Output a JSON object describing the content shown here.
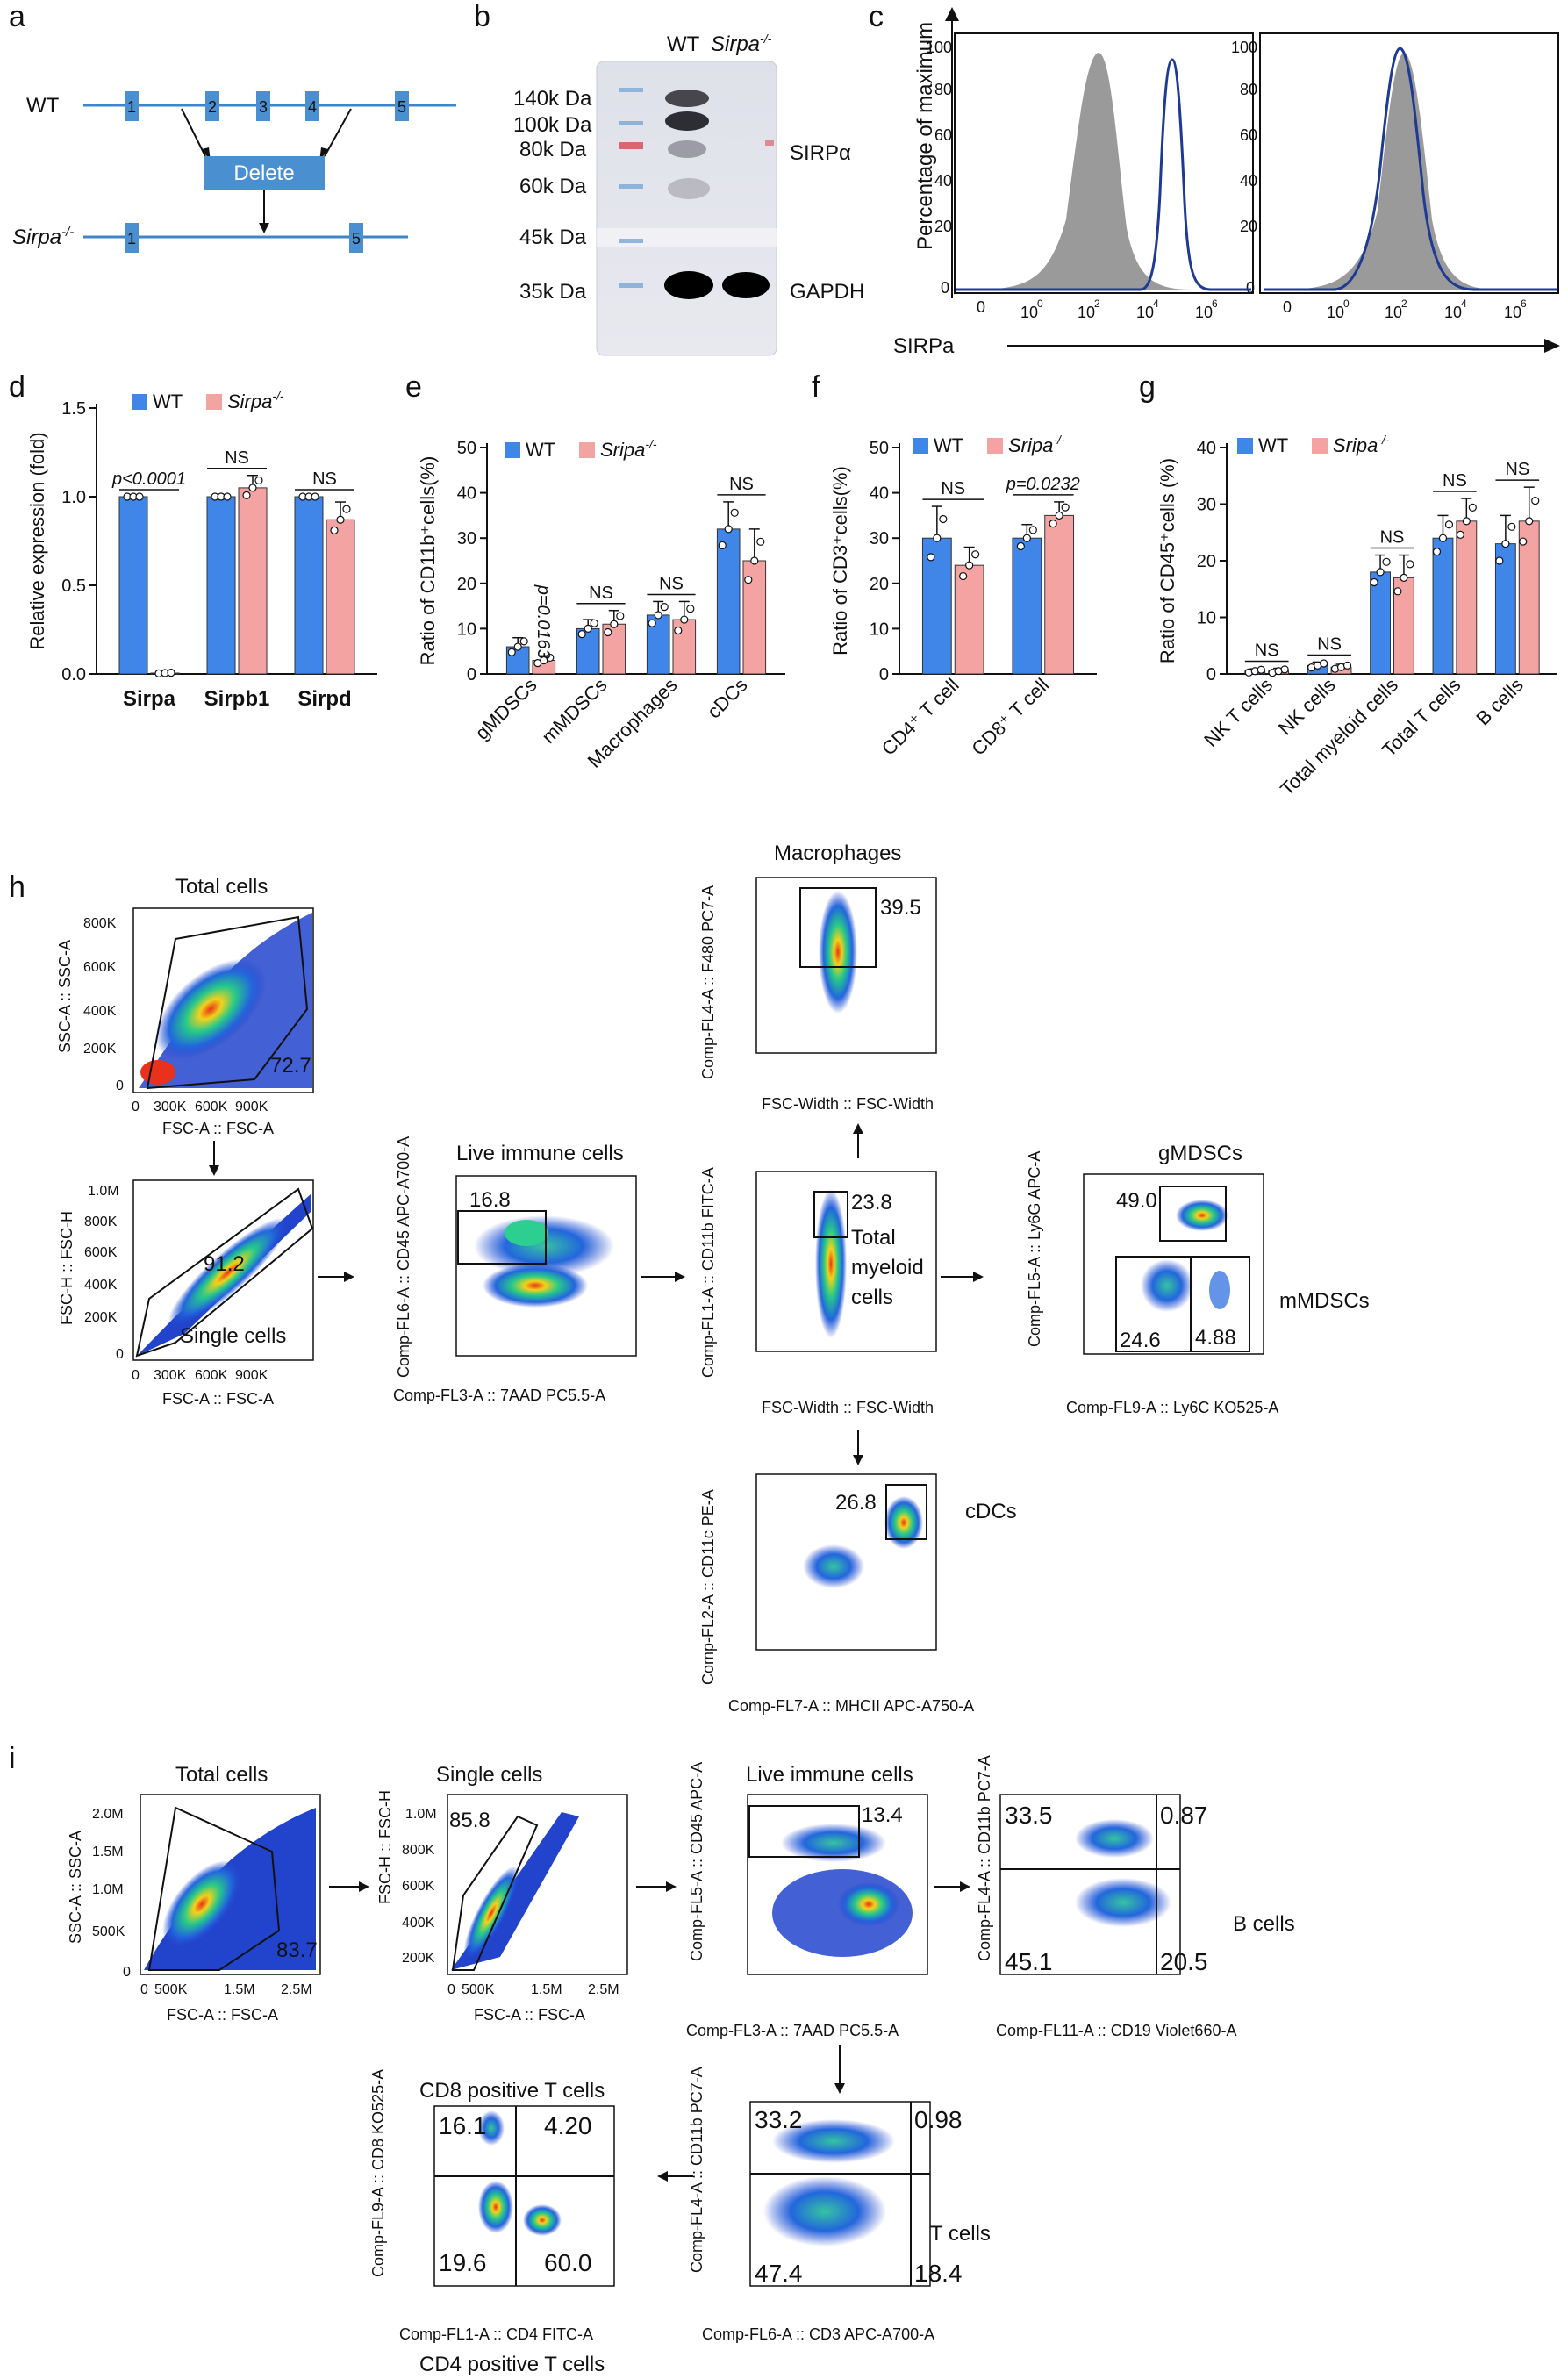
{
  "panel_labels": [
    "a",
    "b",
    "c",
    "d",
    "e",
    "f",
    "g",
    "h",
    "i"
  ],
  "a": {
    "wt_label": "WT",
    "ko_label": "Sirpa",
    "ko_sup": "-/-",
    "wt_exons": [
      "1",
      "2",
      "3",
      "4",
      "5"
    ],
    "ko_exons": [
      "1",
      "5"
    ],
    "delete_label": "Delete"
  },
  "b": {
    "lane_wt": "WT",
    "lane_ko": "Sirpa",
    "lane_ko_sup": "-/-",
    "markers": [
      "140k Da",
      "100k Da",
      "80k Da",
      "60k Da",
      "45k Da",
      "35k Da"
    ],
    "band_labels": [
      "SIRPα",
      "GAPDH"
    ]
  },
  "c": {
    "ylabel": "Percentage of maximum",
    "xlabel": "SIRPa",
    "yticks": [
      "0",
      "20",
      "40",
      "60",
      "80",
      "100"
    ],
    "xticks": [
      "0",
      "10",
      "10",
      "10",
      "10"
    ],
    "xtick_exps": [
      "",
      "0",
      "2",
      "4",
      "6"
    ],
    "colors": {
      "fill": "#9a9a9a",
      "line": "#1f3a93"
    }
  },
  "chart_data": [
    {
      "panel": "d",
      "type": "bar",
      "ylabel": "Relative expression (fold)",
      "categories": [
        "Sirpa",
        "Sirpb1",
        "Sirpd"
      ],
      "series": [
        {
          "name": "WT",
          "values": [
            1.0,
            1.0,
            1.0
          ],
          "color": "#3f86e8"
        },
        {
          "name": "Sirpa-/-",
          "values": [
            0.005,
            1.05,
            0.87
          ],
          "color": "#f4a3a3"
        }
      ],
      "errors": [
        [
          0.0,
          0.0,
          0.0
        ],
        [
          0.003,
          0.07,
          0.1
        ]
      ],
      "ylim": [
        0,
        1.5
      ],
      "yticks": [
        "0.0",
        "0.5",
        "1.0",
        "1.5"
      ],
      "annotations": [
        "p<0.0001",
        "NS",
        "NS"
      ],
      "legend": [
        "WT",
        "Sirpa-/-"
      ],
      "legend_ko_text": "Sirpa",
      "legend_ko_sup": "-/-"
    },
    {
      "panel": "e",
      "type": "bar",
      "ylabel": "Ratio of CD11b⁺cells(%)",
      "categories": [
        "gMDSCs",
        "mMDSCs",
        "Macrophages",
        "cDCs"
      ],
      "series": [
        {
          "name": "WT",
          "values": [
            6,
            10,
            13,
            32
          ],
          "color": "#3f86e8"
        },
        {
          "name": "Sripa-/-",
          "values": [
            3,
            11,
            12,
            25
          ],
          "color": "#f4a3a3"
        }
      ],
      "errors": [
        [
          2,
          2,
          3,
          6
        ],
        [
          1,
          3,
          4,
          7
        ]
      ],
      "ylim": [
        0,
        50
      ],
      "yticks": [
        "0",
        "10",
        "20",
        "30",
        "40",
        "50"
      ],
      "annotations": [
        "p=0.0163",
        "NS",
        "NS",
        "NS"
      ],
      "legend_ko_text": "Sripa",
      "legend_ko_sup": "-/-"
    },
    {
      "panel": "f",
      "type": "bar",
      "ylabel": "Ratio of CD3⁺cells(%)",
      "categories": [
        "CD4⁺ T cell",
        "CD8⁺ T cell"
      ],
      "series": [
        {
          "name": "WT",
          "values": [
            30,
            30
          ],
          "color": "#3f86e8"
        },
        {
          "name": "Sripa-/-",
          "values": [
            24,
            35
          ],
          "color": "#f4a3a3"
        }
      ],
      "errors": [
        [
          7,
          3
        ],
        [
          4,
          3
        ]
      ],
      "ylim": [
        0,
        50
      ],
      "yticks": [
        "0",
        "10",
        "20",
        "30",
        "40",
        "50"
      ],
      "annotations": [
        "NS",
        "p=0.0232"
      ],
      "legend_ko_text": "Sripa",
      "legend_ko_sup": "-/-"
    },
    {
      "panel": "g",
      "type": "bar",
      "ylabel": "Ratio of CD45⁺cells (%)",
      "categories": [
        "NK T cells",
        "NK cells",
        "Total myeloid cells",
        "Total T cells",
        "B cells"
      ],
      "series": [
        {
          "name": "WT",
          "values": [
            0.5,
            1.5,
            18,
            24,
            23
          ],
          "color": "#3f86e8"
        },
        {
          "name": "Sripa-/-",
          "values": [
            0.5,
            1.2,
            17,
            27,
            27
          ],
          "color": "#f4a3a3"
        }
      ],
      "errors": [
        [
          0.4,
          0.6,
          3,
          4,
          5
        ],
        [
          0.5,
          0.5,
          4,
          4,
          6
        ]
      ],
      "ylim": [
        0,
        40
      ],
      "yticks": [
        "0",
        "10",
        "20",
        "30",
        "40"
      ],
      "annotations": [
        "NS",
        "NS",
        "NS",
        "NS",
        "NS"
      ],
      "legend_ko_text": "Sripa",
      "legend_ko_sup": "-/-"
    }
  ],
  "h": {
    "plots": [
      {
        "title": "Total cells",
        "xlabel": "FSC-A :: FSC-A",
        "ylabel": "SSC-A :: SSC-A",
        "gate": "72.7",
        "yticks": [
          "0",
          "200K",
          "400K",
          "600K",
          "800K"
        ],
        "xticks": [
          "0",
          "300K",
          "600K",
          "900K"
        ]
      },
      {
        "title": "Single cells",
        "xlabel": "FSC-A :: FSC-A",
        "ylabel": "FSC-H :: FSC-H",
        "gate": "91.2",
        "yticks": [
          "0",
          "200K",
          "400K",
          "600K",
          "800K",
          "1.0M"
        ],
        "xticks": [
          "0",
          "300K",
          "600K",
          "900K"
        ]
      },
      {
        "title": "Live immune cells",
        "xlabel": "Comp-FL3-A :: 7AAD PC5.5-A",
        "ylabel": "Comp-FL6-A :: CD45 APC-A700-A",
        "gate": "16.8"
      },
      {
        "title": "Macrophages",
        "xlabel": "FSC-Width :: FSC-Width",
        "ylabel": "Comp-FL4-A :: F480 PC7-A",
        "gate": "39.5"
      },
      {
        "title": "Total myeloid cells",
        "xlabel": "FSC-Width :: FSC-Width",
        "ylabel": "Comp-FL1-A :: CD11b FITC-A",
        "gate": "23.8"
      },
      {
        "title": "gMDSCs",
        "xlabel": "Comp-FL9-A :: Ly6C KO525-A",
        "ylabel": "Comp-FL5-A :: Ly6G APC-A",
        "gate": "49.0",
        "gate2": "24.6",
        "gate3": "4.88",
        "side": "mMDSCs"
      },
      {
        "title": "cDCs",
        "xlabel": "Comp-FL7-A :: MHCII APC-A750-A",
        "ylabel": "Comp-FL2-A :: CD11c PE-A",
        "gate": "26.8"
      }
    ]
  },
  "i": {
    "plots": [
      {
        "title": "Total cells",
        "xlabel": "FSC-A :: FSC-A",
        "ylabel": "SSC-A :: SSC-A",
        "gate": "83.7",
        "yticks": [
          "0",
          "500K",
          "1.0M",
          "1.5M",
          "2.0M"
        ],
        "xticks": [
          "0",
          "500K",
          "1.5M",
          "2.5M"
        ]
      },
      {
        "title": "Single cells",
        "xlabel": "FSC-A :: FSC-A",
        "ylabel": "FSC-H :: FSC-H",
        "gate": "85.8",
        "yticks": [
          "200K",
          "400K",
          "600K",
          "800K",
          "1.0M"
        ],
        "xticks": [
          "0",
          "500K",
          "1.5M",
          "2.5M"
        ]
      },
      {
        "title": "Live immune cells",
        "xlabel": "Comp-FL3-A :: 7AAD PC5.5-A",
        "ylabel": "Comp-FL5-A :: CD45 APC-A",
        "gate": "13.4"
      },
      {
        "title": "B cells",
        "xlabel": "Comp-FL11-A :: CD19 Violet660-A",
        "ylabel": "Comp-FL4-A :: CD11b PC7-A",
        "q": [
          "33.5",
          "0.87",
          "45.1",
          "20.5"
        ]
      },
      {
        "title": "T cells",
        "xlabel": "Comp-FL6-A :: CD3 APC-A700-A",
        "ylabel": "Comp-FL4-A :: CD11b PC7-A",
        "q": [
          "33.2",
          "0.98",
          "47.4",
          "18.4"
        ]
      },
      {
        "title": "CD8 positive T cells",
        "xlabel": "Comp-FL1-A :: CD4 FITC-A",
        "ylabel": "Comp-FL9-A :: CD8 KO525-A",
        "q": [
          "16.1",
          "4.20",
          "19.6",
          "60.0"
        ],
        "bottom": "CD4 positive T cells"
      }
    ]
  }
}
